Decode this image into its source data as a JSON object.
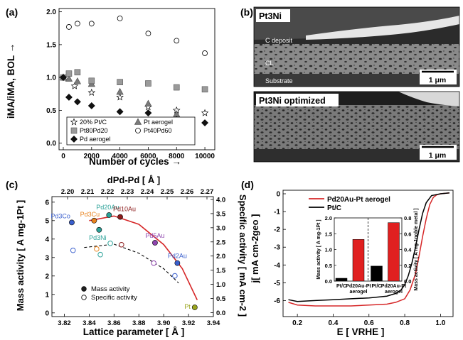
{
  "chart_data": [
    {
      "panel": "(a)",
      "type": "scatter",
      "xlabel": "Number of cycles →",
      "ylabel": "iMA/iMA, BOL →",
      "xlim": [
        -300,
        10700
      ],
      "ylim": [
        -0.1,
        2.05
      ],
      "xticks": [
        0,
        2000,
        4000,
        6000,
        8000,
        10000
      ],
      "yticks": [
        0.0,
        0.5,
        1.0,
        1.5,
        2.0
      ],
      "legend_position": "bottom-left",
      "series": [
        {
          "name": "20% Pt/C",
          "marker": "star",
          "x": [
            0,
            800,
            2000,
            4000,
            6000,
            8000,
            10000
          ],
          "y": [
            1.0,
            0.87,
            0.77,
            0.7,
            0.55,
            0.5,
            0.46
          ]
        },
        {
          "name": "Pt aerogel",
          "marker": "triangle",
          "x": [
            0,
            400,
            1000,
            2000,
            4000,
            6000,
            8000
          ],
          "y": [
            1.0,
            0.98,
            0.94,
            0.9,
            0.78,
            0.6,
            0.44
          ]
        },
        {
          "name": "Pt80Pd20",
          "marker": "square",
          "x": [
            0,
            400,
            1000,
            2000,
            4000,
            6000,
            8000,
            10000
          ],
          "y": [
            1.0,
            1.06,
            1.08,
            0.95,
            0.93,
            0.91,
            0.85,
            0.82
          ]
        },
        {
          "name": "Pt40Pd60",
          "marker": "circle",
          "x": [
            400,
            1000,
            2000,
            4000,
            6000,
            8000,
            10000
          ],
          "y": [
            1.77,
            1.82,
            1.82,
            1.9,
            1.67,
            1.56,
            1.37
          ]
        },
        {
          "name": "Pd aerogel",
          "marker": "diamond",
          "x": [
            0,
            400,
            1000,
            2000,
            4000,
            6000,
            8000,
            10000
          ],
          "y": [
            1.0,
            0.7,
            0.63,
            0.57,
            0.48,
            0.46,
            0.36,
            0.31
          ]
        }
      ]
    },
    {
      "panel": "(c)",
      "type": "scatter",
      "xlabel": "Lattice parameter [ Å ]",
      "ylabel": "Mass activity [ A mg-1Pt ]",
      "ylabel2": "Specific activity [ mA cm-2 ]",
      "top_axis_label": "dPd-Pd [ Å ]",
      "xlim": [
        3.81,
        3.94
      ],
      "ylim": [
        -0.2,
        6.3
      ],
      "y2lim": [
        -0.14,
        4.1
      ],
      "xticks": [
        3.82,
        3.84,
        3.86,
        3.88,
        3.9,
        3.92,
        3.94
      ],
      "yticks": [
        0,
        1,
        2,
        3,
        4,
        5,
        6
      ],
      "y2ticks": [
        0.0,
        0.5,
        1.0,
        1.5,
        2.0,
        2.5,
        3.0,
        3.5,
        4.0
      ],
      "top_ticks": [
        2.2,
        2.21,
        2.22,
        2.23,
        2.24,
        2.25,
        2.26,
        2.27
      ],
      "point_labels": [
        "Pd3Co",
        "Pd3Cu",
        "Pd20Au",
        "Pd10Au",
        "Pd3Ni",
        "Pd5Au",
        "Pd2Au",
        "Pt"
      ],
      "series": [
        {
          "name": "Mass activity",
          "x": [
            3.826,
            3.844,
            3.856,
            3.865,
            3.848,
            3.893,
            3.911,
            3.925
          ],
          "y": [
            4.9,
            5.0,
            5.3,
            5.2,
            4.5,
            3.8,
            2.7,
            0.3
          ]
        },
        {
          "name": "Specific activity",
          "x": [
            3.827,
            3.846,
            3.857,
            3.866,
            3.849,
            3.892,
            3.909
          ],
          "y": [
            2.2,
            2.25,
            2.45,
            2.4,
            2.05,
            1.75,
            1.3
          ]
        }
      ]
    },
    {
      "panel": "(d)",
      "type": "line",
      "xlabel": "E [ VRHE ]",
      "ylabel": "j[ mA cm-2geo ]",
      "xlim": [
        0.12,
        1.07
      ],
      "ylim": [
        -6.9,
        0.2
      ],
      "xticks": [
        0.2,
        0.4,
        0.6,
        0.8,
        1.0
      ],
      "yticks": [
        0,
        -1,
        -2,
        -3,
        -4,
        -5,
        -6
      ],
      "series": [
        {
          "name": "Pd20Au-Pt aerogel",
          "color": "#d62728",
          "x": [
            0.15,
            0.2,
            0.3,
            0.4,
            0.5,
            0.6,
            0.7,
            0.75,
            0.8,
            0.83,
            0.86,
            0.88,
            0.9,
            0.92,
            0.94,
            0.96,
            0.98,
            1.0,
            1.05
          ],
          "y": [
            -6.1,
            -6.25,
            -6.3,
            -6.3,
            -6.3,
            -6.25,
            -6.2,
            -6.1,
            -5.9,
            -5.4,
            -4.5,
            -3.5,
            -2.4,
            -1.4,
            -0.6,
            -0.2,
            -0.05,
            0.0,
            0.05
          ]
        },
        {
          "name": "Pt/C",
          "color": "#000000",
          "x": [
            0.15,
            0.2,
            0.3,
            0.4,
            0.5,
            0.6,
            0.7,
            0.75,
            0.78,
            0.8,
            0.82,
            0.84,
            0.86,
            0.88,
            0.9,
            0.92,
            0.95,
            1.0,
            1.05
          ],
          "y": [
            -5.95,
            -6.05,
            -6.0,
            -5.95,
            -5.9,
            -5.85,
            -5.75,
            -5.6,
            -5.4,
            -5.1,
            -4.6,
            -3.9,
            -3.0,
            -2.0,
            -1.1,
            -0.5,
            -0.1,
            0.0,
            0.05
          ]
        }
      ],
      "inset": {
        "type": "bar",
        "ylabel_left": "Mass activity [ A mg-1Pt ]",
        "ylabel_right": "Mass activity [ A mg-1noble metal ]",
        "left_ylim": [
          0,
          2.0
        ],
        "right_ylim": [
          0,
          0.8
        ],
        "left_yticks": [
          0.0,
          0.5,
          1.0,
          1.5,
          2.0
        ],
        "right_yticks": [
          0.0,
          0.2,
          0.4,
          0.6,
          0.8
        ],
        "groups": [
          {
            "axis": "left",
            "categories": [
              "Pt/C",
              "Pd20Au-Pt aerogel"
            ],
            "values": [
              0.09,
              1.32
            ],
            "colors": [
              "#000000",
              "#e02020"
            ]
          },
          {
            "axis": "right",
            "categories": [
              "Pt/C",
              "Pd20Au-Pt aerogel"
            ],
            "values": [
              0.19,
              0.74
            ],
            "colors": [
              "#000000",
              "#e02020"
            ]
          }
        ]
      }
    }
  ],
  "panels": {
    "a": {
      "label": "(a)"
    },
    "b": {
      "label": "(b)",
      "top_title": "Pt3Ni",
      "bottom_title": "Pt3Ni optimized",
      "label_c_deposit": "C deposit",
      "label_cl": "CL",
      "label_substrate": "Substrate",
      "scalebar": "1 μm"
    },
    "c": {
      "label": "(c)"
    },
    "d": {
      "label": "(d)"
    }
  }
}
